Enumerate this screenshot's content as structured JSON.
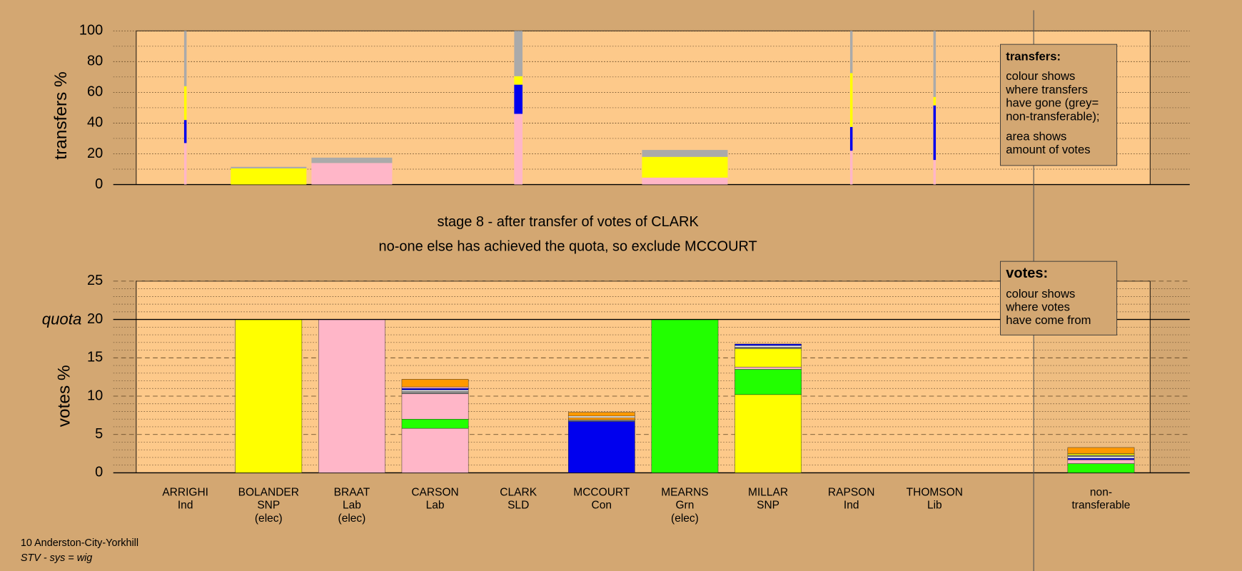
{
  "header": {
    "title": "stage 8 - after transfer of votes of CLARK",
    "subtitle": "no-one else has achieved the quota, so exclude MCCOURT"
  },
  "footer": {
    "constituency": "10 Anderston-City-Yorkhill",
    "system": "STV - sys = wig"
  },
  "chart_data": [
    {
      "type": "bar",
      "ylabel": "transfers %",
      "ylim": [
        0,
        100
      ],
      "yticks": [
        0,
        20,
        40,
        60,
        80,
        100
      ],
      "minor_yticks": [
        10,
        30,
        50,
        70,
        90
      ],
      "grid": true,
      "note_title": "transfers:",
      "note_paragraphs": [
        [
          "colour shows",
          "where transfers",
          "have gone (grey=",
          "non-transferable);"
        ],
        [
          "area shows",
          "amount of votes"
        ]
      ],
      "amounts": [
        3,
        91,
        97,
        null,
        10,
        null,
        103,
        null,
        3,
        3,
        null
      ],
      "series": [
        {
          "color": "#ffb6c8",
          "values": [
            27,
            0,
            14,
            null,
            46,
            null,
            4.5,
            null,
            22,
            16,
            null
          ]
        },
        {
          "color": "#0000ee",
          "values": [
            15,
            0,
            0,
            null,
            19,
            null,
            0,
            null,
            15.5,
            35.5,
            null
          ]
        },
        {
          "color": "#ffff00",
          "values": [
            22,
            10.5,
            0,
            null,
            5.5,
            null,
            13.5,
            null,
            35,
            5.5,
            null
          ]
        },
        {
          "color": "#aaaaaa",
          "values": [
            36,
            1,
            3.5,
            null,
            29.5,
            null,
            4.5,
            null,
            27.5,
            43,
            null
          ]
        }
      ]
    },
    {
      "type": "stacked-bar",
      "ylabel": "votes %",
      "ylim": [
        0,
        25
      ],
      "yticks": [
        0,
        5,
        10,
        15,
        20,
        25
      ],
      "minor_yticks": [
        1,
        2,
        3,
        4,
        6,
        7,
        8,
        9,
        11,
        12,
        13,
        14,
        16,
        17,
        18,
        19,
        21,
        22,
        23,
        24
      ],
      "grid": true,
      "quota": 20,
      "quota_label": "quota",
      "note_title": "votes:",
      "note_lines": [
        "colour shows",
        "where votes",
        "have come from"
      ],
      "labels": [
        [
          "ARRIGHI",
          "Ind"
        ],
        [
          "BOLANDER",
          "SNP",
          "(elec)"
        ],
        [
          "BRAAT",
          "Lab",
          "(elec)"
        ],
        [
          "CARSON",
          "Lab"
        ],
        [
          "CLARK",
          "SLD"
        ],
        [
          "MCCOURT",
          "Con"
        ],
        [
          "MEARNS",
          "Grn",
          "(elec)"
        ],
        [
          "MILLAR",
          "SNP"
        ],
        [
          "RAPSON",
          "Ind"
        ],
        [
          "THOMSON",
          "Lib"
        ],
        [
          "non-",
          "transferable"
        ]
      ],
      "stacks": [
        [],
        [
          {
            "color": "#ffff00",
            "value": 20
          }
        ],
        [
          {
            "color": "#ffb6c8",
            "value": 20
          }
        ],
        [
          {
            "color": "#ffb6c8",
            "value": 5.8
          },
          {
            "color": "#22ff00",
            "value": 1.2
          },
          {
            "color": "#ffb6c8",
            "value": 3.3
          },
          {
            "color": "#888888",
            "value": 0.3
          },
          {
            "color": "#ffffff",
            "value": 0.2
          },
          {
            "color": "#0000ee",
            "value": 0.2
          },
          {
            "color": "#ffb6c8",
            "value": 0.2
          },
          {
            "color": "#ff9900",
            "value": 1.0
          }
        ],
        [],
        [
          {
            "color": "#0000ee",
            "value": 6.7
          },
          {
            "color": "#888888",
            "value": 0.2
          },
          {
            "color": "#ff9900",
            "value": 0.3
          },
          {
            "color": "#ffffff",
            "value": 0.2
          },
          {
            "color": "#ff9900",
            "value": 0.5
          }
        ],
        [
          {
            "color": "#22ff00",
            "value": 20
          }
        ],
        [
          {
            "color": "#ffff00",
            "value": 10.2
          },
          {
            "color": "#22ff00",
            "value": 3.3
          },
          {
            "color": "#ffb6c8",
            "value": 0.3
          },
          {
            "color": "#ffff00",
            "value": 2.4
          },
          {
            "color": "#888888",
            "value": 0.2
          },
          {
            "color": "#ffffff",
            "value": 0.2
          },
          {
            "color": "#0000ee",
            "value": 0.2
          }
        ],
        [],
        [],
        [
          {
            "color": "#22ff00",
            "value": 1.2
          },
          {
            "color": "#ffb6c8",
            "value": 0.5
          },
          {
            "color": "#0000ee",
            "value": 0.2
          },
          {
            "color": "#ffffff",
            "value": 0.2
          },
          {
            "color": "#888888",
            "value": 0.2
          },
          {
            "color": "#ffff00",
            "value": 0.2
          },
          {
            "color": "#ff9900",
            "value": 0.8
          }
        ]
      ]
    }
  ]
}
